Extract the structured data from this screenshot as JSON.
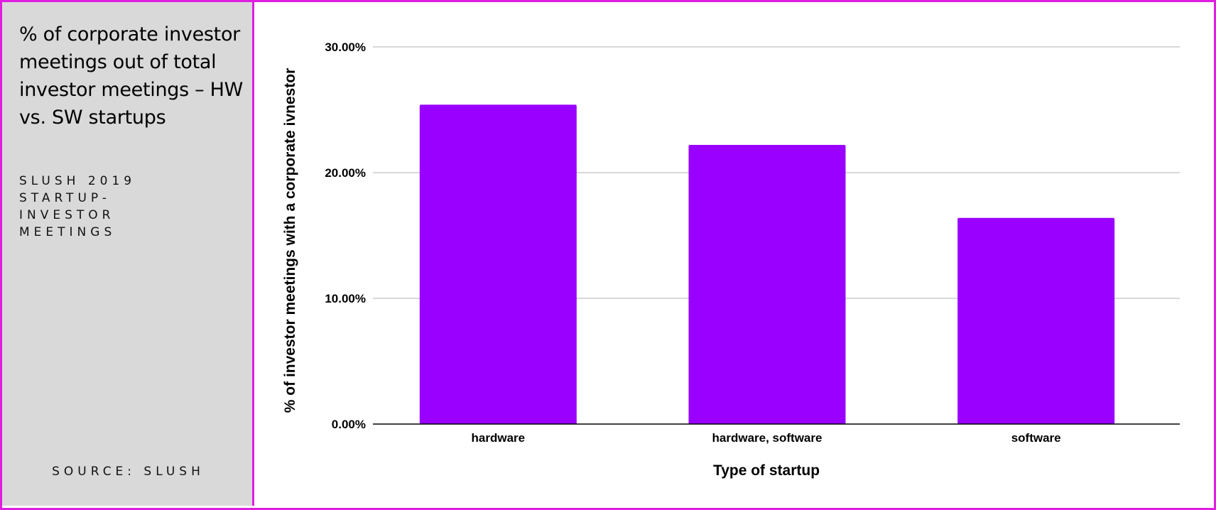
{
  "sidebar": {
    "title": "% of corporate investor meetings out of total investor meetings – HW vs. SW startups",
    "subtitle": "SLUSH 2019 STARTUP-INVESTOR MEETINGS",
    "source": "SOURCE: SLUSH"
  },
  "colors": {
    "bar": "#9900ff",
    "border": "#e01ee0",
    "sidebar_bg": "#d9d9d9",
    "grid": "#cccccc"
  },
  "chart_data": {
    "type": "bar",
    "categories": [
      "hardware",
      "hardware, software",
      "software"
    ],
    "values": [
      25.4,
      22.2,
      16.4
    ],
    "xlabel": "Type of startup",
    "ylabel": "% of investor meetings with a corporate ivnestor",
    "ylim": [
      0,
      30
    ],
    "yticks": [
      "0.00%",
      "10.00%",
      "20.00%",
      "30.00%"
    ],
    "ytick_values": [
      0,
      10,
      20,
      30
    ],
    "grid": true
  }
}
